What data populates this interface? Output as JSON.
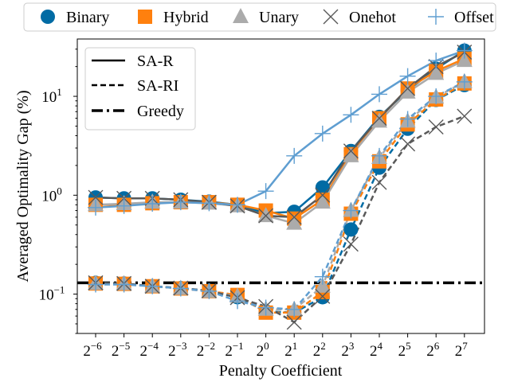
{
  "chart_data": {
    "type": "line",
    "xlabel": "Penalty Coefficient",
    "ylabel": "Averaged Optimality Gap (%)",
    "yscale": "log",
    "ylim": [
      0.04,
      38
    ],
    "x": [
      -6,
      -5,
      -4,
      -3,
      -2,
      -1,
      0,
      1,
      2,
      3,
      4,
      5,
      6,
      7
    ],
    "x_tick_labels": [
      {
        "base": "2",
        "exp": "−6"
      },
      {
        "base": "2",
        "exp": "−5"
      },
      {
        "base": "2",
        "exp": "−4"
      },
      {
        "base": "2",
        "exp": "−3"
      },
      {
        "base": "2",
        "exp": "−2"
      },
      {
        "base": "2",
        "exp": "−1"
      },
      {
        "base": "2",
        "exp": "0"
      },
      {
        "base": "2",
        "exp": "1"
      },
      {
        "base": "2",
        "exp": "2"
      },
      {
        "base": "2",
        "exp": "3"
      },
      {
        "base": "2",
        "exp": "4"
      },
      {
        "base": "2",
        "exp": "5"
      },
      {
        "base": "2",
        "exp": "6"
      },
      {
        "base": "2",
        "exp": "7"
      }
    ],
    "y_tick_labels": [
      {
        "value": 0.1,
        "base": "10",
        "exp": "−1"
      },
      {
        "value": 1,
        "base": "10",
        "exp": "0"
      },
      {
        "value": 10,
        "base": "10",
        "exp": "1"
      }
    ],
    "encodings": [
      {
        "name": "Binary",
        "marker": "circle",
        "color": "#006BA4"
      },
      {
        "name": "Hybrid",
        "marker": "square",
        "color": "#FF800E"
      },
      {
        "name": "Unary",
        "marker": "triangle",
        "color": "#ABABAB"
      },
      {
        "name": "Onehot",
        "marker": "x",
        "color": "#595959"
      },
      {
        "name": "Offset",
        "marker": "plus",
        "color": "#5F9ED1"
      }
    ],
    "methods": [
      {
        "name": "SA-R",
        "dash": "solid"
      },
      {
        "name": "SA-RI",
        "dash": "dashed"
      },
      {
        "name": "Greedy",
        "dash": "dashdot"
      }
    ],
    "greedy_value": 0.13,
    "series": [
      {
        "encoding": "Binary",
        "method": "SA-R",
        "values": [
          0.95,
          0.93,
          0.93,
          0.9,
          0.86,
          0.8,
          0.66,
          0.68,
          1.2,
          2.8,
          6.2,
          11.5,
          19,
          29
        ]
      },
      {
        "encoding": "Hybrid",
        "method": "SA-R",
        "values": [
          0.8,
          0.8,
          0.83,
          0.85,
          0.85,
          0.8,
          0.7,
          0.58,
          0.9,
          2.6,
          6.0,
          12,
          18,
          24
        ]
      },
      {
        "encoding": "Unary",
        "method": "SA-R",
        "values": [
          0.8,
          0.82,
          0.85,
          0.85,
          0.83,
          0.78,
          0.62,
          0.52,
          0.85,
          2.5,
          5.6,
          11,
          17,
          23
        ]
      },
      {
        "encoding": "Onehot",
        "method": "SA-R",
        "values": [
          0.95,
          0.93,
          0.93,
          0.9,
          0.85,
          0.78,
          0.62,
          0.6,
          1.0,
          2.8,
          6.0,
          12,
          20,
          28
        ]
      },
      {
        "encoding": "Offset",
        "method": "SA-R",
        "values": [
          0.75,
          0.78,
          0.82,
          0.85,
          0.83,
          0.8,
          1.1,
          2.5,
          4.2,
          6.5,
          10.5,
          16,
          23,
          29
        ]
      },
      {
        "encoding": "Binary",
        "method": "SA-RI",
        "values": [
          0.13,
          0.128,
          0.12,
          0.115,
          0.108,
          0.093,
          0.067,
          0.065,
          0.093,
          0.45,
          1.9,
          4.7,
          9.2,
          13
        ]
      },
      {
        "encoding": "Hybrid",
        "method": "SA-RI",
        "values": [
          0.128,
          0.127,
          0.12,
          0.114,
          0.107,
          0.098,
          0.065,
          0.065,
          0.105,
          0.65,
          2.2,
          5.2,
          9.3,
          13.5
        ]
      },
      {
        "encoding": "Unary",
        "method": "SA-RI",
        "values": [
          0.128,
          0.127,
          0.12,
          0.114,
          0.106,
          0.095,
          0.07,
          0.07,
          0.12,
          0.7,
          2.4,
          5.6,
          9.8,
          14
        ]
      },
      {
        "encoding": "Onehot",
        "method": "SA-RI",
        "values": [
          0.13,
          0.128,
          0.12,
          0.115,
          0.108,
          0.092,
          0.075,
          0.052,
          0.095,
          0.32,
          1.35,
          3.3,
          4.9,
          6.3
        ]
      },
      {
        "encoding": "Offset",
        "method": "SA-RI",
        "values": [
          0.125,
          0.125,
          0.12,
          0.114,
          0.107,
          0.085,
          0.073,
          0.07,
          0.15,
          0.7,
          2.5,
          5.9,
          10,
          14
        ]
      }
    ]
  }
}
